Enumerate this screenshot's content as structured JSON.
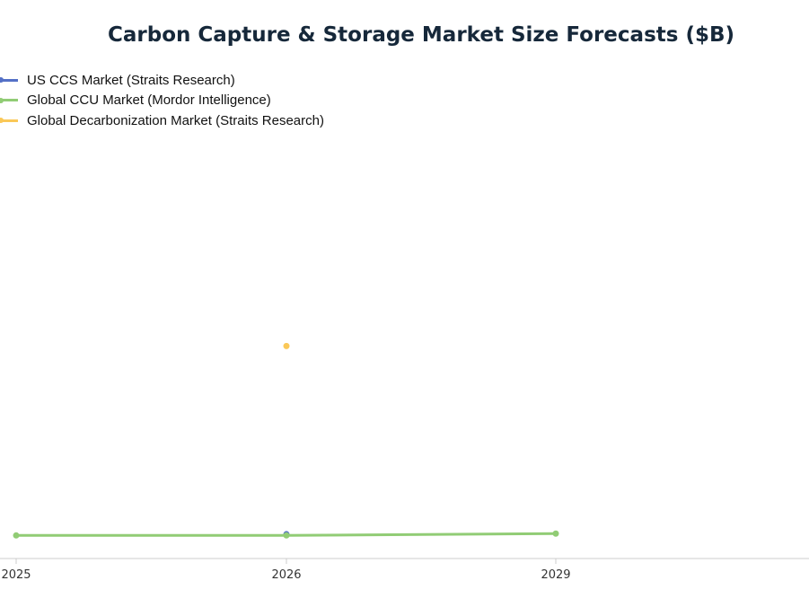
{
  "chart_data": {
    "type": "line",
    "title": "Carbon Capture & Storage Market Size Forecasts ($B)",
    "xlabel": "",
    "ylabel": "",
    "categories": [
      "2025",
      "2026",
      "2029"
    ],
    "ylim": [
      0,
      65
    ],
    "grid": false,
    "legend_position": "top-left",
    "series": [
      {
        "name": "US CCS Market (Straits Research)",
        "color": "#5470c6",
        "values": [
          null,
          0.3,
          null
        ]
      },
      {
        "name": "Global CCU Market (Mordor Intelligence)",
        "color": "#91cc75",
        "values": [
          0.1,
          0.1,
          0.4
        ]
      },
      {
        "name": "Global Decarbonization Market (Straits Research)",
        "color": "#fac858",
        "values": [
          null,
          30.5,
          null
        ]
      }
    ]
  }
}
